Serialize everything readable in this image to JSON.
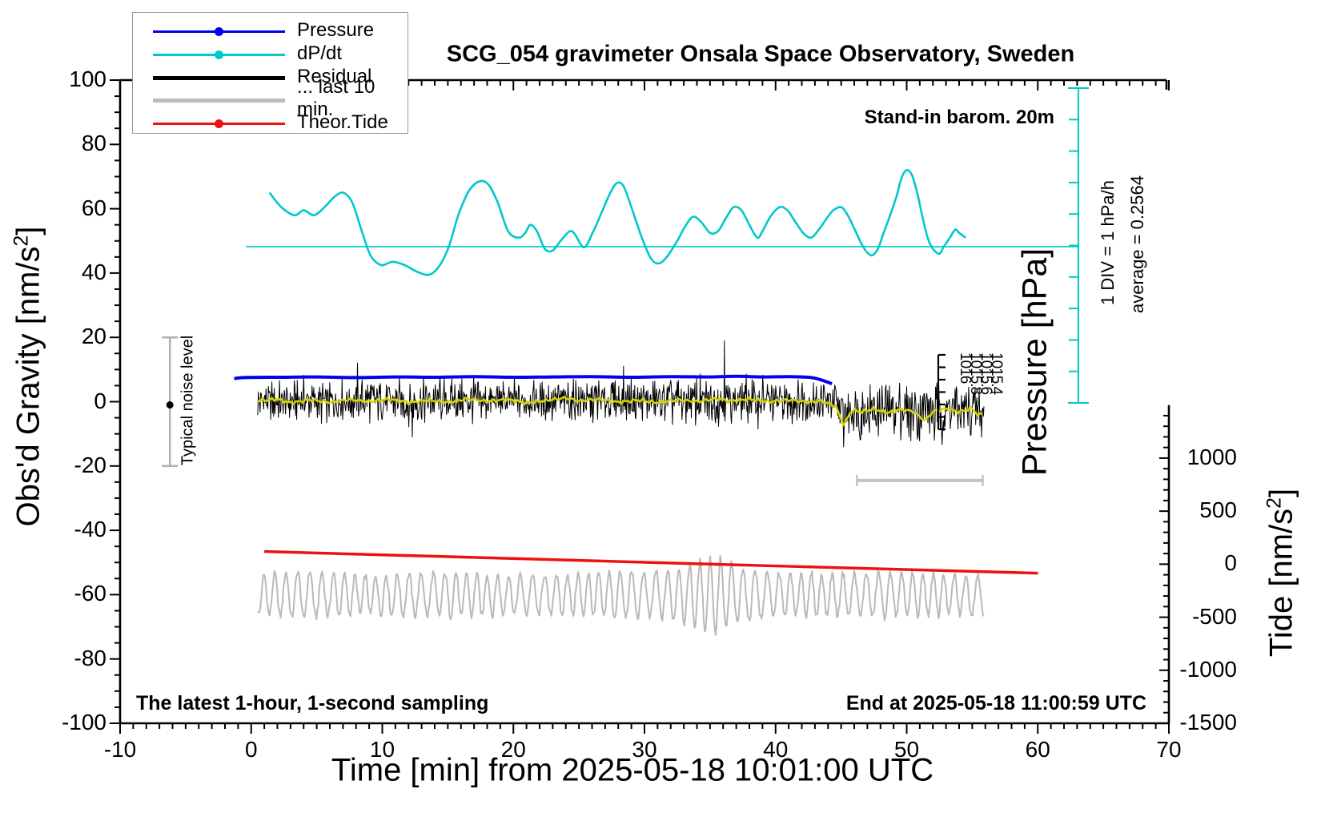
{
  "figure": {
    "title": "SCG_054 gravimeter Onsala Space Observatory, Sweden",
    "annotations": {
      "stand_in": "Stand-in barom. 20m",
      "bottom_left": "The latest 1-hour, 1-second sampling",
      "bottom_right": "End at 2025-05-18 11:00:59 UTC",
      "div_scale": "1 DIV = 1 hPa/h",
      "average": "average = 0.2564",
      "noise_level": "Typical noise level",
      "pressure_axis": "Pressure [hPa]"
    },
    "axis_labels": {
      "x": "Time [min] from 2025-05-18 10:01:00 UTC",
      "y_left_main": "Obs'd Gravity [nm/s",
      "y_left_sup": "2",
      "y_left_close": "]",
      "y_right_main": "Tide [nm/s",
      "y_right_sup": "2",
      "y_right_close": "]"
    },
    "legend": [
      {
        "label": "Pressure",
        "color": "#0000ee",
        "marker": "dot-line"
      },
      {
        "label": "dP/dt",
        "color": "#00c9c9",
        "marker": "dot-line"
      },
      {
        "label": "Residual",
        "color": "#000000",
        "marker": "thick-line"
      },
      {
        "label": "... last 10 min.",
        "color": "#bcbcbc",
        "marker": "thick-line"
      },
      {
        "label": "Theor.Tide",
        "color": "#ee1111",
        "marker": "dot-line"
      }
    ]
  },
  "chart_data": {
    "type": "line",
    "title": "SCG_054 gravimeter Onsala Space Observatory, Sweden",
    "xlabel": "Time [min] from 2025-05-18 10:01:00 UTC",
    "x_axis": {
      "min": -10,
      "max": 70,
      "major_tick": 10,
      "minor_tick": 1,
      "tick_values": [
        -10,
        0,
        10,
        20,
        30,
        40,
        50,
        60,
        70
      ],
      "tick_labels": [
        "-10",
        "0",
        "10",
        "20",
        "30",
        "40",
        "50",
        "60",
        "70"
      ]
    },
    "y_left": {
      "label": "Obs'd Gravity [nm/s2]",
      "min": -100,
      "max": 100,
      "major_tick": 20,
      "minor_tick": 5,
      "tick_values": [
        100,
        80,
        60,
        40,
        20,
        0,
        -20,
        -40,
        -60,
        -80,
        -100
      ],
      "tick_labels": [
        "100",
        "80",
        "60",
        "40",
        "20",
        "0",
        "-20",
        "-40",
        "-60",
        "-80",
        "-100"
      ]
    },
    "y_right_tide": {
      "label": "Tide [nm/s2]",
      "min": -1500,
      "max": 1500,
      "major_tick": 500,
      "minor_tick": 100,
      "tick_values": [
        1000,
        500,
        0,
        -500,
        -1000,
        -1500
      ],
      "tick_labels": [
        "1000",
        "500",
        "0",
        "-500",
        "-1000",
        "-1500"
      ]
    },
    "dpdt_axis": {
      "divisions": 10,
      "div_label": "1 DIV = 1 hPa/h",
      "average": 0.2564,
      "average_level_gravity_scale": 48.2
    },
    "pressure_inset": {
      "tick_labels": [
        "1016",
        "1015.8",
        "1015.6",
        "1015.4"
      ]
    },
    "noise_level_marker": {
      "t": -6.2,
      "value": 0,
      "half_span": 20
    },
    "scale_bar": {
      "t_start": 46.2,
      "t_end": 55.8,
      "value": -24.5
    },
    "series": [
      {
        "name": "Pressure",
        "color": "#0000ee",
        "width": 4,
        "axis": "gravity",
        "points": [
          [
            -1.3,
            7.2
          ],
          [
            -0.5,
            7.5
          ],
          [
            2,
            7.6
          ],
          [
            5,
            7.7
          ],
          [
            8,
            7.5
          ],
          [
            11,
            7.7
          ],
          [
            14,
            7.6
          ],
          [
            17,
            7.8
          ],
          [
            20,
            7.6
          ],
          [
            23,
            7.7
          ],
          [
            26,
            7.8
          ],
          [
            29,
            7.6
          ],
          [
            32,
            7.8
          ],
          [
            35,
            7.7
          ],
          [
            37,
            7.9
          ],
          [
            39,
            7.7
          ],
          [
            41,
            7.8
          ],
          [
            42.5,
            7.6
          ],
          [
            43.3,
            7.0
          ],
          [
            44.3,
            5.6
          ]
        ]
      },
      {
        "name": "dP/dt",
        "color": "#00c9c9",
        "width": 2.6,
        "axis": "gravity",
        "points": [
          [
            1.4,
            65
          ],
          [
            2.3,
            60.5
          ],
          [
            3.3,
            58
          ],
          [
            4,
            59.5
          ],
          [
            4.8,
            58
          ],
          [
            5.6,
            60.5
          ],
          [
            6.3,
            63.5
          ],
          [
            7,
            65
          ],
          [
            7.7,
            62
          ],
          [
            8.4,
            53.5
          ],
          [
            9.1,
            45.5
          ],
          [
            9.9,
            42.5
          ],
          [
            10.8,
            43.5
          ],
          [
            11.7,
            42.5
          ],
          [
            12.6,
            40.5
          ],
          [
            13.6,
            39.5
          ],
          [
            14.4,
            42.5
          ],
          [
            15.1,
            48.5
          ],
          [
            15.8,
            58
          ],
          [
            16.6,
            65.5
          ],
          [
            17.4,
            68.5
          ],
          [
            18.1,
            67.5
          ],
          [
            18.8,
            62
          ],
          [
            19.6,
            53
          ],
          [
            20.4,
            51
          ],
          [
            20.9,
            52.5
          ],
          [
            21.3,
            55
          ],
          [
            21.8,
            53
          ],
          [
            22.4,
            47.5
          ],
          [
            23,
            47
          ],
          [
            23.6,
            50
          ],
          [
            24.3,
            53
          ],
          [
            24.7,
            52
          ],
          [
            25.4,
            48
          ],
          [
            26.1,
            53
          ],
          [
            26.8,
            59.5
          ],
          [
            27.4,
            65
          ],
          [
            27.9,
            68
          ],
          [
            28.4,
            67
          ],
          [
            29,
            60.5
          ],
          [
            29.8,
            51
          ],
          [
            30.5,
            44.5
          ],
          [
            31.1,
            43
          ],
          [
            31.7,
            45
          ],
          [
            32.5,
            50
          ],
          [
            33.1,
            54.5
          ],
          [
            33.7,
            57.5
          ],
          [
            34.3,
            56
          ],
          [
            35,
            52.5
          ],
          [
            35.6,
            53
          ],
          [
            36.2,
            57
          ],
          [
            36.8,
            60.5
          ],
          [
            37.4,
            59.5
          ],
          [
            38,
            55
          ],
          [
            38.6,
            51
          ],
          [
            39,
            53
          ],
          [
            39.6,
            57.5
          ],
          [
            40.3,
            60.5
          ],
          [
            40.9,
            59.5
          ],
          [
            41.5,
            56
          ],
          [
            42.1,
            52.5
          ],
          [
            42.7,
            51
          ],
          [
            43.3,
            53.5
          ],
          [
            43.9,
            57
          ],
          [
            44.4,
            59.5
          ],
          [
            45,
            60.5
          ],
          [
            45.5,
            58
          ],
          [
            46.1,
            53
          ],
          [
            46.7,
            48
          ],
          [
            47.3,
            45.5
          ],
          [
            47.8,
            47.5
          ],
          [
            48.2,
            52
          ],
          [
            48.7,
            57.5
          ],
          [
            49.2,
            63.5
          ],
          [
            49.6,
            69.5
          ],
          [
            50,
            72
          ],
          [
            50.4,
            70.5
          ],
          [
            50.8,
            65
          ],
          [
            51.2,
            57.5
          ],
          [
            51.6,
            51
          ],
          [
            52,
            47.5
          ],
          [
            52.5,
            46
          ],
          [
            52.8,
            48
          ],
          [
            53.3,
            51
          ],
          [
            53.7,
            53.5
          ],
          [
            54,
            52.5
          ],
          [
            54.5,
            51
          ]
        ]
      },
      {
        "name": "Residual",
        "color": "#000000",
        "width": 1,
        "axis": "gravity",
        "t_start": 0.5,
        "t_end": 55.9,
        "center_envelope": [
          [
            0.5,
            0.3
          ],
          [
            44.2,
            0.3
          ],
          [
            44.8,
            -2.8
          ],
          [
            55.9,
            -2.8
          ]
        ],
        "amplitude_envelope": [
          [
            0.5,
            5.5
          ],
          [
            10,
            6
          ],
          [
            20,
            5.5
          ],
          [
            30,
            6
          ],
          [
            35,
            6.5
          ],
          [
            44.2,
            5.5
          ],
          [
            44.8,
            7.5
          ],
          [
            50,
            8
          ],
          [
            55.9,
            7.5
          ]
        ],
        "spikes": [
          [
            8.1,
            12
          ],
          [
            12.3,
            -11
          ],
          [
            28.4,
            11
          ],
          [
            36.1,
            19
          ],
          [
            45.2,
            -14
          ],
          [
            52.1,
            -12
          ],
          [
            55.7,
            -11
          ]
        ]
      },
      {
        "name": "Residual smoothed",
        "color": "#d4d400",
        "width": 2.6,
        "axis": "gravity",
        "points": [
          [
            0.5,
            0.3
          ],
          [
            2,
            0.8
          ],
          [
            3,
            -0.4
          ],
          [
            4.5,
            0.6
          ],
          [
            6,
            -0.2
          ],
          [
            7.5,
            0.7
          ],
          [
            9,
            0
          ],
          [
            10.5,
            0.8
          ],
          [
            12,
            -0.3
          ],
          [
            13.5,
            0.5
          ],
          [
            15,
            -0.2
          ],
          [
            16.5,
            0.9
          ],
          [
            18,
            0.1
          ],
          [
            19.5,
            0.7
          ],
          [
            21,
            -0.4
          ],
          [
            22.5,
            0.4
          ],
          [
            24,
            1.2
          ],
          [
            25,
            0.2
          ],
          [
            26.5,
            0.8
          ],
          [
            28,
            -0.2
          ],
          [
            29.5,
            0.5
          ],
          [
            31,
            -0.3
          ],
          [
            32.5,
            0.6
          ],
          [
            34,
            0
          ],
          [
            35.5,
            1.0
          ],
          [
            36.5,
            0.2
          ],
          [
            38,
            0.8
          ],
          [
            39.5,
            0
          ],
          [
            41,
            0.6
          ],
          [
            42.5,
            -0.2
          ],
          [
            43.5,
            0.3
          ],
          [
            44.6,
            -1.5
          ],
          [
            45.2,
            -7.5
          ],
          [
            45.8,
            -2.5
          ],
          [
            46.5,
            -3.2
          ],
          [
            47.5,
            -2.2
          ],
          [
            48.5,
            -3.5
          ],
          [
            49.5,
            -2.4
          ],
          [
            50.5,
            -3.0
          ],
          [
            51.4,
            -6.0
          ],
          [
            52,
            -3.0
          ],
          [
            53,
            -2.2
          ],
          [
            54,
            -3.2
          ],
          [
            55,
            -2.0
          ],
          [
            55.5,
            -4.5
          ],
          [
            55.9,
            -3.0
          ]
        ]
      },
      {
        "name": "... last 10 min.",
        "color": "#b9b9b9",
        "width": 2,
        "axis": "gravity",
        "t_start": 0.5,
        "t_end": 55.9,
        "center": -60,
        "period_min": 0.85,
        "amplitude_envelope": [
          [
            0.5,
            6
          ],
          [
            4,
            7.5
          ],
          [
            8,
            6
          ],
          [
            12,
            6.5
          ],
          [
            16,
            7
          ],
          [
            20,
            6
          ],
          [
            24,
            6.5
          ],
          [
            28,
            7
          ],
          [
            32,
            7.5
          ],
          [
            34,
            10
          ],
          [
            35.5,
            12
          ],
          [
            37,
            9
          ],
          [
            40,
            7
          ],
          [
            44,
            6.5
          ],
          [
            48,
            7
          ],
          [
            52,
            6.5
          ],
          [
            55.9,
            6
          ]
        ]
      },
      {
        "name": "Theor.Tide",
        "color": "#ee1111",
        "width": 3.5,
        "axis": "tide",
        "points": [
          [
            1,
            120
          ],
          [
            30,
            18
          ],
          [
            60,
            -85
          ]
        ]
      }
    ]
  }
}
